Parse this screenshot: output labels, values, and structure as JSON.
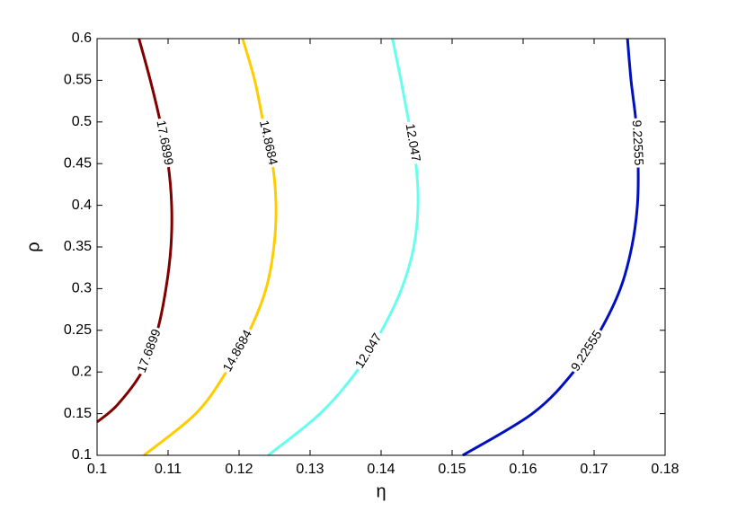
{
  "chart_data": {
    "type": "contour",
    "xlabel": "η",
    "ylabel": "ρ",
    "xlim": [
      0.1,
      0.18
    ],
    "ylim": [
      0.1,
      0.6
    ],
    "xticks": [
      0.1,
      0.11,
      0.12,
      0.13,
      0.14,
      0.15,
      0.16,
      0.17,
      0.18
    ],
    "yticks": [
      0.1,
      0.15,
      0.2,
      0.25,
      0.3,
      0.35,
      0.4,
      0.45,
      0.5,
      0.55,
      0.6
    ],
    "series": [
      {
        "name": "17.6899",
        "color": "#800000",
        "x": [
          0.1,
          0.1028,
          0.1063,
          0.1085,
          0.1097,
          0.1104,
          0.1105,
          0.11,
          0.1089,
          0.1075,
          0.1059
        ],
        "y": [
          0.14,
          0.16,
          0.2,
          0.25,
          0.3,
          0.35,
          0.4,
          0.45,
          0.5,
          0.55,
          0.6
        ]
      },
      {
        "name": "14.8684",
        "color": "#ffcc00",
        "x": [
          0.1066,
          0.1139,
          0.1182,
          0.1215,
          0.1238,
          0.1249,
          0.1252,
          0.1247,
          0.1234,
          0.1222,
          0.1205
        ],
        "y": [
          0.1,
          0.15,
          0.2,
          0.25,
          0.3,
          0.35,
          0.4,
          0.45,
          0.5,
          0.55,
          0.6
        ]
      },
      {
        "name": "12.047",
        "color": "#66ffee",
        "x": [
          0.1241,
          0.1314,
          0.1365,
          0.1401,
          0.1429,
          0.1446,
          0.1452,
          0.1449,
          0.1439,
          0.1428,
          0.1416
        ],
        "y": [
          0.1,
          0.15,
          0.2,
          0.25,
          0.3,
          0.35,
          0.4,
          0.45,
          0.5,
          0.55,
          0.6
        ]
      },
      {
        "name": "9.22555",
        "color": "#0010c0",
        "x": [
          0.1515,
          0.1613,
          0.1671,
          0.1709,
          0.1737,
          0.1753,
          0.1761,
          0.1762,
          0.1759,
          0.1752,
          0.1747
        ],
        "y": [
          0.1,
          0.15,
          0.2,
          0.25,
          0.3,
          0.35,
          0.4,
          0.45,
          0.5,
          0.55,
          0.6
        ]
      }
    ]
  }
}
